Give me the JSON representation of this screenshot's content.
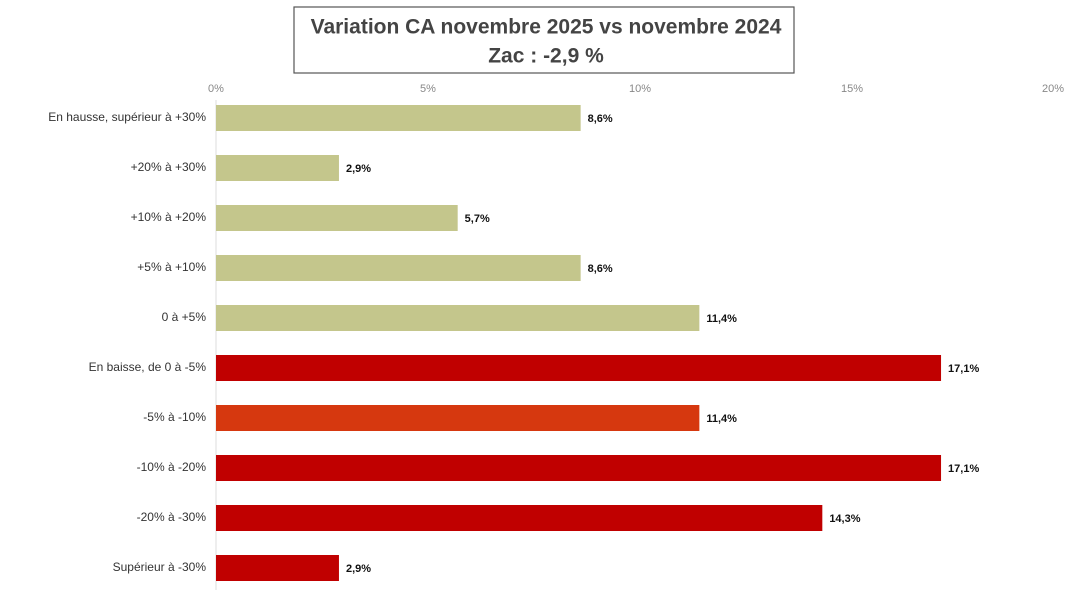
{
  "chart_data": {
    "type": "bar",
    "orientation": "horizontal",
    "title": "Variation CA novembre 2025 vs novembre 2024",
    "subtitle": "Zac : -2,9 %",
    "categories": [
      "En hausse, supérieur à +30%",
      "+20% à +30%",
      "+10% à +20%",
      "+5% à +10%",
      "0 à +5%",
      "En baisse, de 0 à -5%",
      "-5% à -10%",
      "-10% à -20%",
      "-20% à -30%",
      "Supérieur à -30%"
    ],
    "values": [
      8.6,
      2.9,
      5.7,
      8.6,
      11.4,
      17.1,
      11.4,
      17.1,
      14.3,
      2.9
    ],
    "value_labels": [
      "8,6%",
      "2,9%",
      "5,7%",
      "8,6%",
      "11,4%",
      "17,1%",
      "11,4%",
      "17,1%",
      "14,3%",
      "2,9%"
    ],
    "colors": [
      "#c4c68c",
      "#c4c68c",
      "#c4c68c",
      "#c4c68c",
      "#c4c68c",
      "#c00000",
      "#d6380f",
      "#c00000",
      "#c00000",
      "#c00000"
    ],
    "xlim": [
      0,
      20
    ],
    "xticks": [
      {
        "value": 0,
        "label": "0%"
      },
      {
        "value": 5,
        "label": "5%"
      },
      {
        "value": 10,
        "label": "10%"
      },
      {
        "value": 15,
        "label": "15%"
      },
      {
        "value": 20,
        "label": "20%"
      }
    ]
  }
}
